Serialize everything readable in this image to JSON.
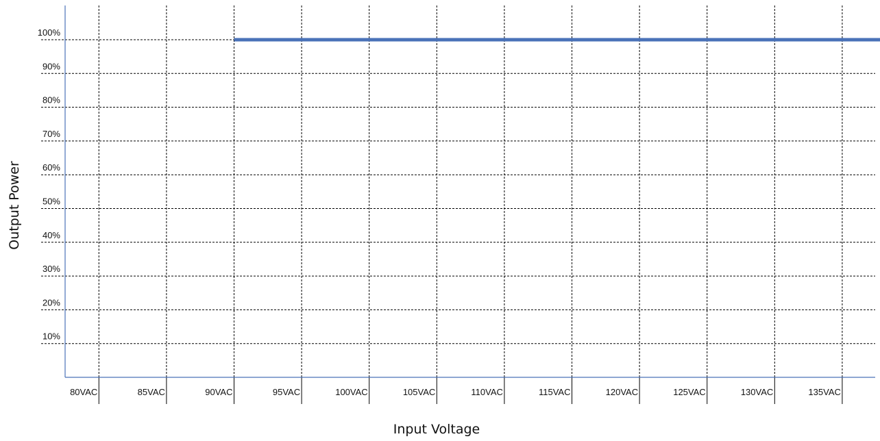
{
  "chart_data": {
    "type": "line",
    "title": "",
    "xlabel": "Input Voltage",
    "ylabel": "Output Power",
    "x_tick_labels": [
      "80VAC",
      "85VAC",
      "90VAC",
      "95VAC",
      "100VAC",
      "105VAC",
      "110VAC",
      "115VAC",
      "120VAC",
      "125VAC",
      "130VAC",
      "135VAC"
    ],
    "y_tick_labels": [
      "10%",
      "20%",
      "30%",
      "40%",
      "50%",
      "60%",
      "70%",
      "80%",
      "90%",
      "100%"
    ],
    "xlim": [
      77.5,
      140
    ],
    "ylim": [
      0,
      110
    ],
    "grid": true,
    "series": [
      {
        "x": [
          90,
          139.5
        ],
        "y": [
          100,
          100
        ]
      }
    ],
    "colors": {
      "series": "#4a72b8",
      "axis": "#4a72b8",
      "grid": "#000000"
    }
  }
}
